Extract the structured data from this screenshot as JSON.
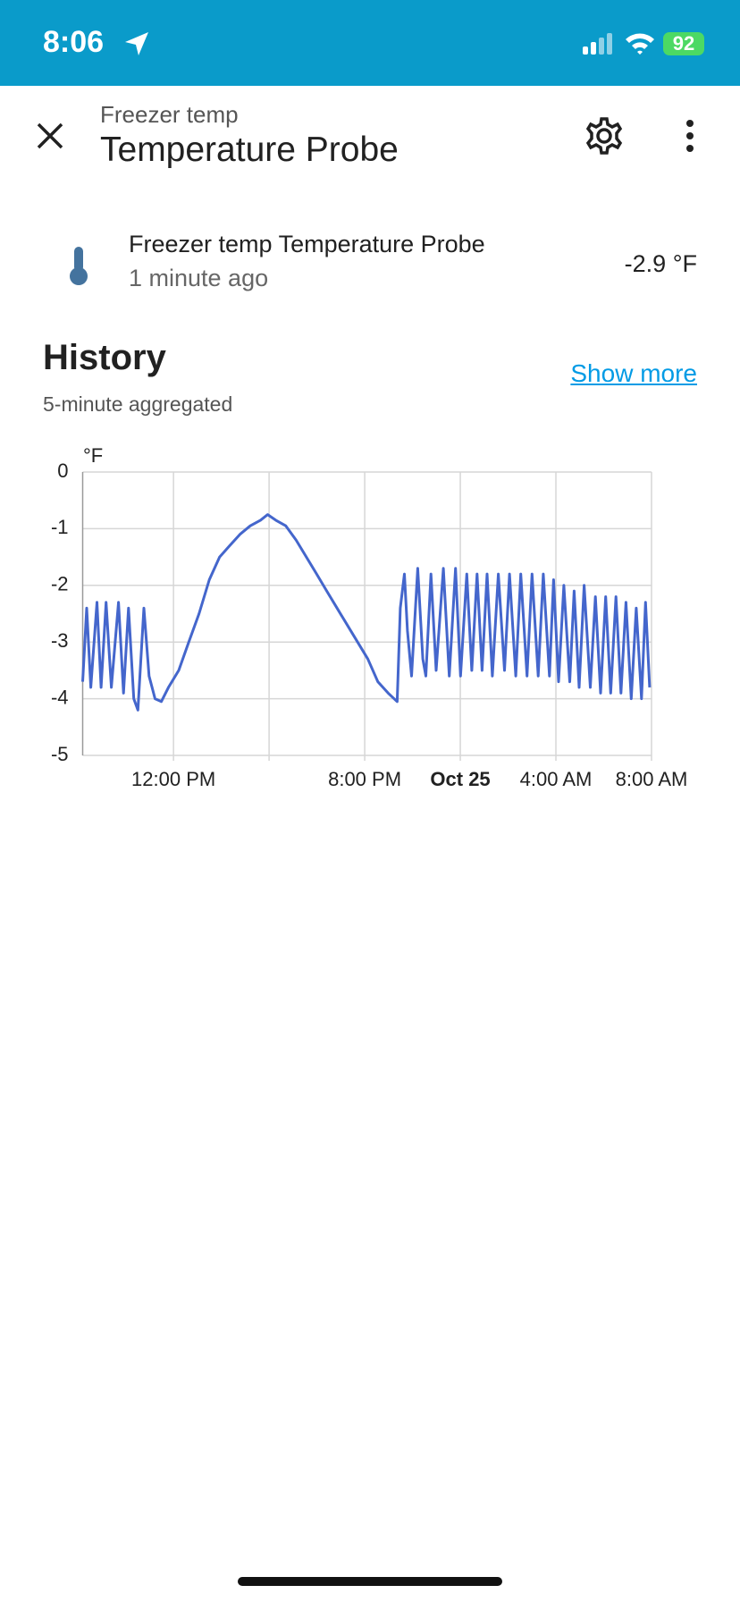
{
  "status_bar": {
    "time": "8:06",
    "battery": "92"
  },
  "header": {
    "subtitle": "Freezer temp",
    "title": "Temperature Probe"
  },
  "entity": {
    "name": "Freezer temp Temperature Probe",
    "updated": "1 minute ago",
    "state": "-2.9 °F"
  },
  "history": {
    "title": "History",
    "show_more": "Show more",
    "note": "5-minute aggregated"
  },
  "chart_data": {
    "type": "line",
    "y_unit": "°F",
    "grid": true,
    "xlim": [
      8.2,
      32
    ],
    "xticks": [
      {
        "value": 12,
        "label": "12:00 PM"
      },
      {
        "value": 16,
        "label": null
      },
      {
        "value": 20,
        "label": "8:00 PM"
      },
      {
        "value": 24,
        "label": "Oct 25",
        "bold": true
      },
      {
        "value": 28,
        "label": "4:00 AM"
      },
      {
        "value": 32,
        "label": "8:00 AM"
      }
    ],
    "ylim": [
      -5,
      0
    ],
    "yticks": [
      0,
      -1,
      -2,
      -3,
      -4,
      -5
    ],
    "series": [
      {
        "color": "#4466cc",
        "x": [
          8.2,
          8.37,
          8.54,
          8.8,
          8.97,
          9.18,
          9.4,
          9.7,
          9.91,
          10.12,
          10.34,
          10.51,
          10.76,
          10.98,
          11.23,
          11.49,
          11.79,
          12.22,
          12.64,
          13.07,
          13.5,
          13.93,
          14.35,
          14.78,
          15.21,
          15.64,
          15.94,
          16.28,
          16.7,
          17.13,
          17.56,
          17.99,
          18.41,
          18.84,
          19.27,
          19.7,
          20.13,
          20.55,
          20.98,
          21.36,
          21.49,
          21.66,
          21.79,
          21.96,
          22.22,
          22.43,
          22.56,
          22.77,
          22.99,
          23.29,
          23.54,
          23.8,
          24.01,
          24.27,
          24.48,
          24.7,
          24.91,
          25.12,
          25.34,
          25.59,
          25.85,
          26.06,
          26.32,
          26.53,
          26.79,
          27.0,
          27.26,
          27.47,
          27.73,
          27.9,
          28.11,
          28.33,
          28.58,
          28.76,
          28.97,
          29.18,
          29.44,
          29.65,
          29.87,
          30.08,
          30.29,
          30.51,
          30.72,
          30.93,
          31.15,
          31.36,
          31.58,
          31.75,
          31.92
        ],
        "values": [
          -3.7,
          -2.4,
          -3.8,
          -2.3,
          -3.8,
          -2.3,
          -3.8,
          -2.3,
          -3.9,
          -2.4,
          -4.0,
          -4.2,
          -2.4,
          -3.6,
          -4.0,
          -4.05,
          -3.8,
          -3.5,
          -3.0,
          -2.5,
          -1.9,
          -1.5,
          -1.3,
          -1.1,
          -0.95,
          -0.85,
          -0.75,
          -0.85,
          -0.95,
          -1.2,
          -1.5,
          -1.8,
          -2.1,
          -2.4,
          -2.7,
          -3.0,
          -3.3,
          -3.7,
          -3.9,
          -4.05,
          -2.4,
          -1.8,
          -2.8,
          -3.6,
          -1.7,
          -3.3,
          -3.6,
          -1.8,
          -3.5,
          -1.7,
          -3.6,
          -1.7,
          -3.6,
          -1.8,
          -3.5,
          -1.8,
          -3.5,
          -1.8,
          -3.6,
          -1.8,
          -3.5,
          -1.8,
          -3.6,
          -1.8,
          -3.6,
          -1.8,
          -3.6,
          -1.8,
          -3.6,
          -1.9,
          -3.7,
          -2.0,
          -3.7,
          -2.1,
          -3.8,
          -2.0,
          -3.8,
          -2.2,
          -3.9,
          -2.2,
          -3.9,
          -2.2,
          -3.9,
          -2.3,
          -4.0,
          -2.4,
          -4.0,
          -2.3,
          -3.8
        ]
      }
    ]
  }
}
